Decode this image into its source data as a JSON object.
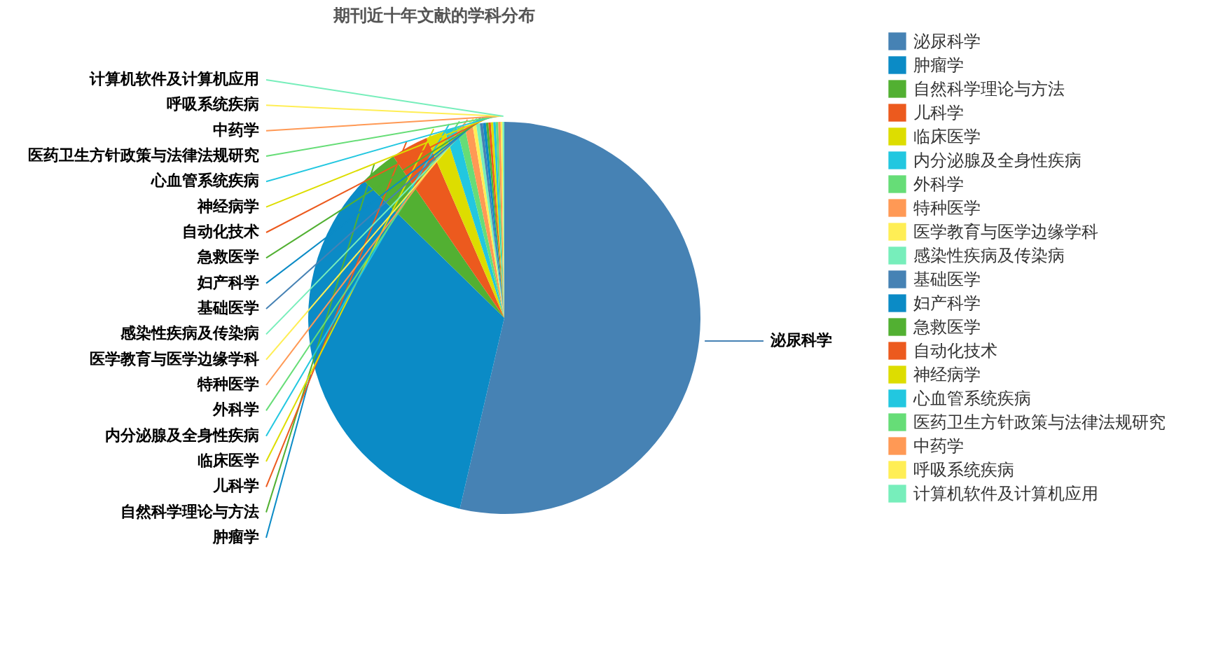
{
  "chart_data": {
    "type": "pie",
    "title": "期刊近十年文献的学科分布",
    "legend": "right",
    "categories": [
      "泌尿科学",
      "肿瘤学",
      "自然科学理论与方法",
      "儿科学",
      "临床医学",
      "内分泌腺及全身性疾病",
      "外科学",
      "特种医学",
      "医学教育与医学边缘学科",
      "感染性疾病及传染病",
      "基础医学",
      "妇产科学",
      "急救医学",
      "自动化技术",
      "神经病学",
      "心血管系统疾病",
      "医药卫生方针政策与法律法规研究",
      "中药学",
      "呼吸系统疾病",
      "计算机软件及计算机应用"
    ],
    "values": [
      53.7,
      33.7,
      3.1,
      3.1,
      1.6,
      1.0,
      0.65,
      0.65,
      0.3,
      0.3,
      0.25,
      0.25,
      0.2,
      0.2,
      0.2,
      0.2,
      0.2,
      0.2,
      0.15,
      0.15
    ],
    "colors": [
      "#4682b4",
      "#0b8bc6",
      "#52b032",
      "#ec5a1e",
      "#dddd00",
      "#22c7e0",
      "#66dd77",
      "#ff9955",
      "#ffee55",
      "#77eebb",
      "#4682b4",
      "#0b8bc6",
      "#52b032",
      "#ec5a1e",
      "#dddd00",
      "#22c7e0",
      "#66dd77",
      "#ff9955",
      "#ffee55",
      "#77eebb"
    ]
  }
}
